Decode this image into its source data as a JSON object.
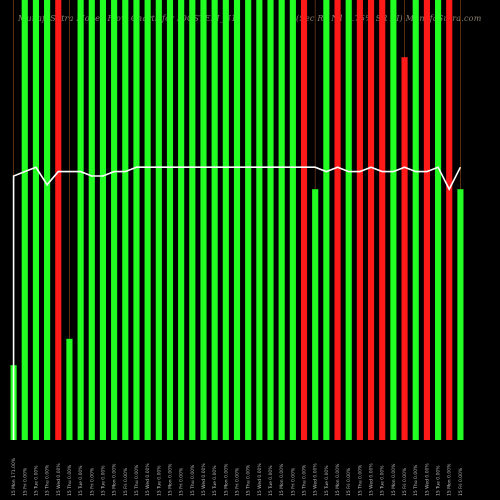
{
  "header": {
    "left_text": "MunafaSutra Money Flow Charts for IOCSTEFI_N1",
    "right_text": "(Sec Re  N1 9.75% SR XI) MunafaSutra.com"
  },
  "colors": {
    "background": "#000000",
    "up_bar": "#22ff22",
    "down_bar": "#ff1a1a",
    "line": "#ffffff",
    "grid": "#6b3a1a",
    "header_text": "#8a7f70",
    "tick_text": "#bdbdbd"
  },
  "chart_data": {
    "type": "bar",
    "title": "",
    "xlabel": "",
    "ylabel": "",
    "ylim": [
      0,
      100
    ],
    "y_axis_visible": false,
    "x_tick_rotation": -90,
    "categories": [
      "15 Mon 171.00%",
      "15 Fri 0.00%",
      "15 Tue 0.00%",
      "15 Thu 0.00%",
      "15 Wed 0.00%",
      "15 Thu 0.00%",
      "15 Tue 0.00%",
      "15 Fri 0.00%",
      "15 Tue 0.00%",
      "15 Mon 0.00%",
      "15 Fri 0.00%",
      "15 Thu 0.00%",
      "15 Wed 0.00%",
      "15 Tue 0.00%",
      "15 Mon 0.00%",
      "15 Fri 0.00%",
      "15 Thu 0.00%",
      "15 Wed 0.00%",
      "15 Tue 0.00%",
      "15 Mon 0.00%",
      "15 Fri 0.00%",
      "15 Thu 0.00%",
      "15 Wed 0.00%",
      "15 Tue 0.00%",
      "15 Mon 0.00%",
      "15 Fri 0.00%",
      "15 Thu 0.00%",
      "15 Wed 0.00%",
      "15 Tue 0.00%",
      "15 Mon 0.00%",
      "15 Fri 0.00%",
      "15 Thu 0.00%",
      "15 Wed 0.00%",
      "15 Tue 0.00%",
      "15 Mon 0.00%",
      "15 Fri 0.00%",
      "15 Thu 0.00%",
      "15 Wed 0.00%",
      "15 Tue 0.00%",
      "15 Mon 0.00%",
      "15 Fri 0.00%"
    ],
    "series": [
      {
        "values": [
          17,
          100,
          100,
          100,
          100,
          23,
          100,
          100,
          100,
          100,
          100,
          100,
          100,
          100,
          100,
          100,
          100,
          100,
          100,
          100,
          100,
          100,
          100,
          100,
          100,
          100,
          100,
          57,
          100,
          100,
          100,
          100,
          100,
          100,
          100,
          87,
          100,
          100,
          100,
          100,
          57
        ],
        "colors": [
          "up",
          "up",
          "up",
          "up",
          "down",
          "up",
          "up",
          "up",
          "up",
          "up",
          "up",
          "up",
          "up",
          "up",
          "up",
          "up",
          "up",
          "up",
          "up",
          "up",
          "up",
          "up",
          "up",
          "up",
          "up",
          "up",
          "down",
          "up",
          "up",
          "down",
          "up",
          "down",
          "down",
          "down",
          "up",
          "down",
          "up",
          "down",
          "up",
          "down",
          "up"
        ]
      },
      {
        "type": "line",
        "values": [
          60,
          61,
          62,
          58,
          61,
          61,
          61,
          60,
          60,
          61,
          61,
          62,
          62,
          62,
          62,
          62,
          62,
          62,
          62,
          62,
          62,
          62,
          62,
          62,
          62,
          62,
          62,
          62,
          61,
          62,
          61,
          61,
          62,
          61,
          61,
          62,
          61,
          61,
          62,
          57,
          62
        ]
      }
    ]
  }
}
